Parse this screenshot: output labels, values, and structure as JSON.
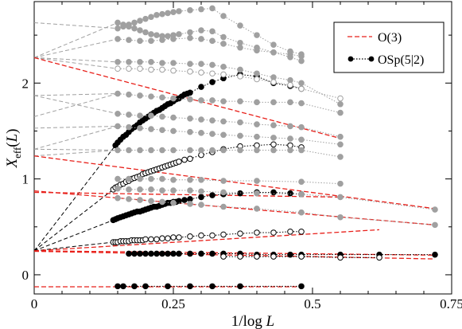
{
  "chart_data": {
    "type": "scatter",
    "xlabel": "1/log L",
    "ylabel": "X_eff(L)",
    "xlim": [
      0,
      0.75
    ],
    "ylim": [
      -0.2,
      2.85
    ],
    "x_ticks": [
      "0",
      "0.25",
      "0.5",
      "0.75"
    ],
    "y_ticks": [
      "0",
      "1",
      "2"
    ],
    "legend": {
      "placement": "top-right",
      "entries": [
        {
          "label": "O(3)",
          "style": "red-dashed"
        },
        {
          "label": "OSp(5|2)",
          "style": "black-dotted-filled"
        }
      ]
    },
    "colors": {
      "red": "#e8201a",
      "gray": "#a0a0a0",
      "black": "#000000"
    },
    "red_lines": [
      {
        "y0": 2.265,
        "x1": 0.552,
        "y1": 1.42
      },
      {
        "y0": 1.24,
        "x1": 0.72,
        "y1": 0.69
      },
      {
        "y0": 0.875,
        "x1": 0.72,
        "y1": 0.52
      },
      {
        "y0": 0.86,
        "x1": 0.552,
        "y1": 0.81
      },
      {
        "y0": 0.25,
        "x1": 0.62,
        "y1": 0.47
      },
      {
        "y0": 0.245,
        "x1": 0.72,
        "y1": 0.165
      },
      {
        "y0": 0.25,
        "x1": 0.72,
        "y1": 0.205
      },
      {
        "y0": -0.125,
        "x1": 0.48,
        "y1": -0.125
      }
    ],
    "series": [
      {
        "fill": "black",
        "x": [
          0.146,
          0.15,
          0.155,
          0.16,
          0.165,
          0.17,
          0.175,
          0.18,
          0.185,
          0.19,
          0.195,
          0.2,
          0.205,
          0.21,
          0.215,
          0.22,
          0.225,
          0.23,
          0.235,
          0.24,
          0.245,
          0.25,
          0.255,
          0.26,
          0.265,
          0.27,
          0.275,
          0.28,
          0.3,
          0.32,
          0.34,
          0.37,
          0.4,
          0.43,
          0.46,
          0.48
        ],
        "y": [
          1.35,
          1.38,
          1.41,
          1.44,
          1.46,
          1.49,
          1.52,
          1.54,
          1.56,
          1.59,
          1.61,
          1.63,
          1.65,
          1.67,
          1.69,
          1.71,
          1.72,
          1.74,
          1.76,
          1.78,
          1.79,
          1.81,
          1.83,
          1.84,
          1.86,
          1.88,
          1.89,
          1.9,
          1.96,
          2.01,
          2.05,
          2.09,
          2.07,
          2.0,
          1.97,
          1.94
        ]
      },
      {
        "fill": "open",
        "x": [
          0.142,
          0.146,
          0.15,
          0.155,
          0.16,
          0.165,
          0.17,
          0.175,
          0.18,
          0.185,
          0.19,
          0.195,
          0.2,
          0.205,
          0.21,
          0.215,
          0.22,
          0.225,
          0.23,
          0.235,
          0.24,
          0.245,
          0.25,
          0.255,
          0.26,
          0.27,
          0.28,
          0.3,
          0.32,
          0.34,
          0.37,
          0.4,
          0.43,
          0.46,
          0.48
        ],
        "y": [
          0.89,
          0.91,
          0.92,
          0.94,
          0.95,
          0.97,
          0.98,
          1.0,
          1.01,
          1.02,
          1.03,
          1.05,
          1.06,
          1.07,
          1.08,
          1.09,
          1.1,
          1.11,
          1.12,
          1.13,
          1.14,
          1.15,
          1.16,
          1.17,
          1.18,
          1.2,
          1.21,
          1.25,
          1.28,
          1.31,
          1.34,
          1.35,
          1.36,
          1.35,
          1.33
        ]
      },
      {
        "fill": "black",
        "x": [
          0.142,
          0.146,
          0.15,
          0.155,
          0.16,
          0.165,
          0.17,
          0.175,
          0.18,
          0.185,
          0.19,
          0.195,
          0.2,
          0.205,
          0.21,
          0.215,
          0.22,
          0.225,
          0.23,
          0.235,
          0.24,
          0.245,
          0.25,
          0.255,
          0.26,
          0.27,
          0.28,
          0.3,
          0.32,
          0.34,
          0.37,
          0.4,
          0.43,
          0.46,
          0.48
        ],
        "y": [
          0.57,
          0.58,
          0.59,
          0.6,
          0.61,
          0.62,
          0.63,
          0.64,
          0.65,
          0.66,
          0.66,
          0.67,
          0.68,
          0.69,
          0.7,
          0.71,
          0.71,
          0.72,
          0.73,
          0.74,
          0.75,
          0.75,
          0.76,
          0.76,
          0.77,
          0.78,
          0.79,
          0.81,
          0.83,
          0.84,
          0.85,
          0.86,
          0.86,
          0.85,
          0.84
        ]
      },
      {
        "fill": "open",
        "x": [
          0.142,
          0.146,
          0.15,
          0.155,
          0.16,
          0.165,
          0.17,
          0.175,
          0.18,
          0.185,
          0.19,
          0.195,
          0.2,
          0.21,
          0.22,
          0.23,
          0.24,
          0.25,
          0.26,
          0.28,
          0.3,
          0.32,
          0.34,
          0.37,
          0.4,
          0.43,
          0.46,
          0.48
        ],
        "y": [
          0.34,
          0.34,
          0.34,
          0.35,
          0.35,
          0.35,
          0.35,
          0.36,
          0.36,
          0.36,
          0.36,
          0.36,
          0.37,
          0.37,
          0.37,
          0.38,
          0.38,
          0.39,
          0.39,
          0.4,
          0.41,
          0.41,
          0.42,
          0.43,
          0.44,
          0.44,
          0.45,
          0.45
        ]
      },
      {
        "fill": "black",
        "x": [
          0.17,
          0.18,
          0.19,
          0.2,
          0.21,
          0.22,
          0.23,
          0.24,
          0.25,
          0.26,
          0.28,
          0.3,
          0.32,
          0.34,
          0.37,
          0.4,
          0.43,
          0.46,
          0.48,
          0.55,
          0.62,
          0.72
        ],
        "y": [
          0.22,
          0.22,
          0.22,
          0.22,
          0.22,
          0.22,
          0.22,
          0.22,
          0.22,
          0.22,
          0.22,
          0.22,
          0.22,
          0.22,
          0.22,
          0.21,
          0.21,
          0.21,
          0.21,
          0.21,
          0.21,
          0.21
        ]
      },
      {
        "fill": "open",
        "x": [
          0.34,
          0.37,
          0.4,
          0.43,
          0.48,
          0.55,
          0.62
        ],
        "y": [
          0.19,
          0.19,
          0.19,
          0.19,
          0.19,
          0.18,
          0.18
        ]
      },
      {
        "fill": "black",
        "x": [
          0.15,
          0.16,
          0.18,
          0.2,
          0.24,
          0.28,
          0.32,
          0.37,
          0.48
        ],
        "y": [
          -0.12,
          -0.12,
          -0.12,
          -0.12,
          -0.12,
          -0.12,
          -0.12,
          -0.12,
          -0.12
        ]
      },
      {
        "fill": "gray",
        "x": [
          0.15,
          0.16,
          0.17,
          0.18,
          0.19,
          0.2,
          0.21,
          0.22,
          0.23,
          0.24,
          0.25,
          0.26,
          0.28,
          0.3,
          0.32,
          0.34,
          0.37,
          0.4,
          0.43,
          0.46,
          0.48
        ],
        "y": [
          2.57,
          2.59,
          2.61,
          2.63,
          2.65,
          2.67,
          2.69,
          2.71,
          2.72,
          2.73,
          2.74,
          2.75,
          2.76,
          2.77,
          2.78,
          2.7,
          2.6,
          2.5,
          2.4,
          2.33,
          2.3
        ]
      },
      {
        "fill": "gray",
        "x": [
          0.15,
          0.16,
          0.17,
          0.18,
          0.19,
          0.2,
          0.21,
          0.22,
          0.23,
          0.24,
          0.25,
          0.26,
          0.28,
          0.3,
          0.32,
          0.34,
          0.37,
          0.4,
          0.43,
          0.46,
          0.48
        ],
        "y": [
          2.63,
          2.61,
          2.59,
          2.57,
          2.55,
          2.53,
          2.51,
          2.5,
          2.49,
          2.49,
          2.5,
          2.51,
          2.53,
          2.55,
          2.54,
          2.48,
          2.42,
          2.37,
          2.32,
          2.27,
          2.23
        ]
      },
      {
        "fill": "gray",
        "x": [
          0.15,
          0.17,
          0.19,
          0.21,
          0.23,
          0.25,
          0.28,
          0.3,
          0.32,
          0.34,
          0.37,
          0.4,
          0.43,
          0.46,
          0.48
        ],
        "y": [
          2.46,
          2.45,
          2.44,
          2.44,
          2.45,
          2.46,
          2.47,
          2.46,
          2.44,
          2.41,
          2.37,
          2.34,
          2.32,
          2.3,
          2.28
        ]
      },
      {
        "fill": "gray",
        "x": [
          0.15,
          0.17,
          0.19,
          0.21,
          0.23,
          0.25,
          0.28,
          0.3,
          0.32,
          0.34,
          0.37,
          0.4,
          0.43,
          0.46,
          0.48,
          0.55
        ],
        "y": [
          2.22,
          2.22,
          2.22,
          2.22,
          2.21,
          2.21,
          2.2,
          2.2,
          2.19,
          2.17,
          2.14,
          2.1,
          2.06,
          2.03,
          2.0,
          1.78
        ]
      },
      {
        "fill": "open-gray",
        "x": [
          0.15,
          0.17,
          0.19,
          0.21,
          0.23,
          0.25,
          0.28,
          0.3,
          0.32,
          0.34,
          0.37,
          0.4,
          0.43,
          0.46,
          0.48,
          0.55
        ],
        "y": [
          2.15,
          2.15,
          2.15,
          2.14,
          2.14,
          2.13,
          2.12,
          2.11,
          2.1,
          2.09,
          2.07,
          2.04,
          2.01,
          1.98,
          1.94,
          1.84
        ]
      },
      {
        "fill": "gray",
        "x": [
          0.15,
          0.17,
          0.19,
          0.21,
          0.23,
          0.25,
          0.28,
          0.3,
          0.32,
          0.34,
          0.37,
          0.4,
          0.43,
          0.46,
          0.48,
          0.55
        ],
        "y": [
          1.89,
          1.88,
          1.87,
          1.86,
          1.85,
          1.84,
          1.83,
          1.82,
          1.82,
          1.81,
          1.81,
          1.8,
          1.8,
          1.8,
          1.79,
          1.69
        ]
      },
      {
        "fill": "gray",
        "x": [
          0.15,
          0.17,
          0.19,
          0.21,
          0.23,
          0.25,
          0.28,
          0.3,
          0.32,
          0.34,
          0.37,
          0.4,
          0.43,
          0.46,
          0.48,
          0.55
        ],
        "y": [
          1.68,
          1.67,
          1.66,
          1.66,
          1.65,
          1.64,
          1.63,
          1.62,
          1.61,
          1.6,
          1.59,
          1.57,
          1.56,
          1.55,
          1.54,
          1.44
        ]
      },
      {
        "fill": "gray",
        "x": [
          0.15,
          0.17,
          0.19,
          0.21,
          0.23,
          0.25,
          0.28,
          0.3,
          0.32,
          0.34,
          0.37,
          0.4,
          0.43,
          0.46,
          0.48,
          0.55
        ],
        "y": [
          1.55,
          1.54,
          1.53,
          1.52,
          1.51,
          1.5,
          1.49,
          1.48,
          1.47,
          1.46,
          1.45,
          1.44,
          1.43,
          1.42,
          1.41,
          1.36
        ]
      },
      {
        "fill": "gray",
        "x": [
          0.15,
          0.17,
          0.19,
          0.21,
          0.23,
          0.25,
          0.28,
          0.3,
          0.32,
          0.34,
          0.37,
          0.4,
          0.43,
          0.46,
          0.48,
          0.55
        ],
        "y": [
          1.3,
          1.3,
          1.3,
          1.3,
          1.3,
          1.3,
          1.3,
          1.3,
          1.3,
          1.3,
          1.3,
          1.3,
          1.3,
          1.3,
          1.3,
          1.23
        ]
      },
      {
        "fill": "gray",
        "x": [
          0.15,
          0.17,
          0.19,
          0.21,
          0.23,
          0.25,
          0.28,
          0.3,
          0.34,
          0.4,
          0.48,
          0.55
        ],
        "y": [
          1.0,
          1.0,
          1.0,
          1.0,
          1.0,
          0.99,
          0.99,
          0.99,
          0.98,
          0.98,
          0.97,
          0.95
        ]
      },
      {
        "fill": "gray",
        "x": [
          0.15,
          0.17,
          0.19,
          0.21,
          0.23,
          0.25,
          0.28,
          0.3,
          0.34,
          0.4,
          0.48,
          0.55,
          0.72
        ],
        "y": [
          0.9,
          0.89,
          0.89,
          0.89,
          0.88,
          0.88,
          0.88,
          0.87,
          0.86,
          0.85,
          0.84,
          0.81,
          0.68
        ]
      },
      {
        "fill": "gray",
        "x": [
          0.15,
          0.17,
          0.19,
          0.21,
          0.23,
          0.25,
          0.28,
          0.3,
          0.34,
          0.4,
          0.48,
          0.55,
          0.72
        ],
        "y": [
          0.8,
          0.79,
          0.78,
          0.77,
          0.76,
          0.75,
          0.74,
          0.73,
          0.71,
          0.69,
          0.65,
          0.6,
          0.52
        ]
      }
    ]
  }
}
